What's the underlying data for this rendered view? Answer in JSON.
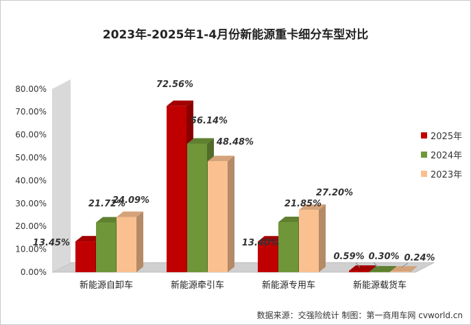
{
  "chart_data": {
    "type": "bar",
    "title": "2023年-2025年1-4月份新能源重卡细分车型对比",
    "categories": [
      "新能源自卸车",
      "新能源牵引车",
      "新能源专用车",
      "新能源载货车"
    ],
    "series": [
      {
        "name": "2025年",
        "color": "#c00000",
        "values": [
          13.45,
          72.56,
          13.4,
          0.59
        ],
        "labels": [
          "13.45%",
          "72.56%",
          "13.40%",
          "0.59%"
        ]
      },
      {
        "name": "2024年",
        "color": "#70963a",
        "values": [
          21.72,
          56.14,
          21.85,
          0.3
        ],
        "labels": [
          "21.72%",
          "56.14%",
          "21.85%",
          "0.30%"
        ]
      },
      {
        "name": "2023年",
        "color": "#fac08f",
        "values": [
          24.09,
          48.48,
          27.2,
          0.24
        ],
        "labels": [
          "24.09%",
          "48.48%",
          "27.20%",
          "0.24%"
        ]
      }
    ],
    "y_ticks": [
      "0.00%",
      "10.00%",
      "20.00%",
      "30.00%",
      "40.00%",
      "50.00%",
      "60.00%",
      "70.00%",
      "80.00%"
    ],
    "ylim": [
      0,
      80
    ],
    "legend_position": "right",
    "grid": false,
    "source": "数据来源：交强险统计  制图：第一商用车网 cvworld.cn"
  }
}
